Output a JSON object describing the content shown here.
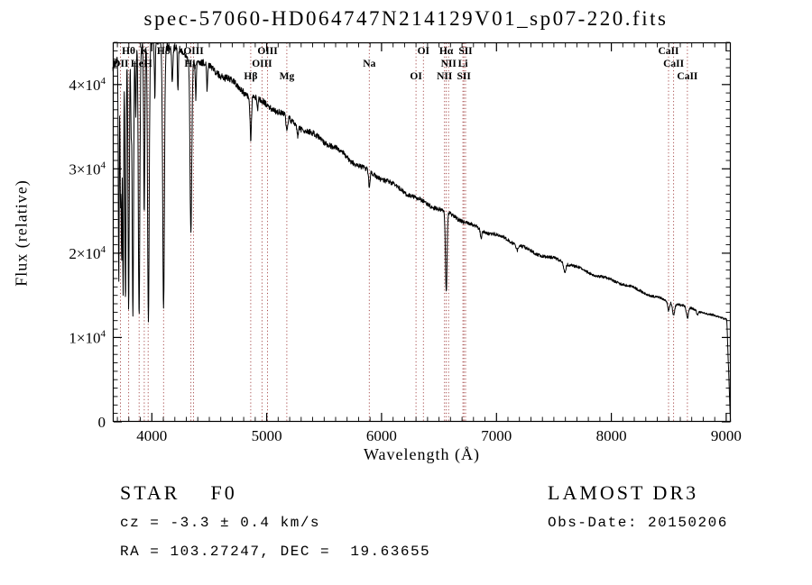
{
  "chart_data": {
    "type": "line",
    "title": "spec-57060-HD064747N214129V01_sp07-220.fits",
    "xlabel": "Wavelength (Å)",
    "ylabel": "Flux (relative)",
    "xlim": [
      3660,
      9040
    ],
    "ylim": [
      0,
      45000
    ],
    "x_ticks": [
      {
        "v": 4000,
        "label": "4000"
      },
      {
        "v": 5000,
        "label": "5000"
      },
      {
        "v": 6000,
        "label": "6000"
      },
      {
        "v": 7000,
        "label": "7000"
      },
      {
        "v": 8000,
        "label": "8000"
      },
      {
        "v": 9000,
        "label": "9000"
      }
    ],
    "x_minor_step": 100,
    "y_ticks": [
      {
        "v": 0,
        "base": "0",
        "exp": ""
      },
      {
        "v": 10000,
        "base": "1×10",
        "exp": "4"
      },
      {
        "v": 20000,
        "base": "2×10",
        "exp": "4"
      },
      {
        "v": 30000,
        "base": "3×10",
        "exp": "4"
      },
      {
        "v": 40000,
        "base": "4×10",
        "exp": "4"
      }
    ],
    "y_minor_step": 1000,
    "line_color": "#000000",
    "marker_line_color": "#9e3a3a",
    "grid": false,
    "legend": "none",
    "spectrum": {
      "continuum": [
        [
          3660,
          42200
        ],
        [
          3700,
          43200
        ],
        [
          3760,
          44000
        ],
        [
          3820,
          44500
        ],
        [
          3880,
          44800
        ],
        [
          3950,
          44900
        ],
        [
          4020,
          44900
        ],
        [
          4080,
          44850
        ],
        [
          4150,
          44600
        ],
        [
          4220,
          44200
        ],
        [
          4300,
          43500
        ],
        [
          4400,
          42700
        ],
        [
          4500,
          41900
        ],
        [
          4600,
          41100
        ],
        [
          4700,
          40300
        ],
        [
          4800,
          39400
        ],
        [
          4900,
          38400
        ],
        [
          5000,
          37500
        ],
        [
          5100,
          36700
        ],
        [
          5200,
          35800
        ],
        [
          5300,
          35000
        ],
        [
          5400,
          34100
        ],
        [
          5500,
          33200
        ],
        [
          5600,
          32300
        ],
        [
          5700,
          31400
        ],
        [
          5800,
          30500
        ],
        [
          5900,
          29600
        ],
        [
          6000,
          28800
        ],
        [
          6100,
          28000
        ],
        [
          6200,
          27300
        ],
        [
          6300,
          26600
        ],
        [
          6400,
          25900
        ],
        [
          6500,
          25200
        ],
        [
          6600,
          24500
        ],
        [
          6700,
          23900
        ],
        [
          6800,
          23300
        ],
        [
          6900,
          22700
        ],
        [
          7000,
          22100
        ],
        [
          7100,
          21500
        ],
        [
          7200,
          20900
        ],
        [
          7300,
          20300
        ],
        [
          7400,
          19800
        ],
        [
          7500,
          19300
        ],
        [
          7600,
          18800
        ],
        [
          7700,
          18300
        ],
        [
          7800,
          17800
        ],
        [
          7900,
          17300
        ],
        [
          8000,
          16800
        ],
        [
          8100,
          16300
        ],
        [
          8200,
          15800
        ],
        [
          8300,
          15300
        ],
        [
          8400,
          14800
        ],
        [
          8500,
          14300
        ],
        [
          8600,
          13800
        ],
        [
          8700,
          13400
        ],
        [
          8800,
          13000
        ],
        [
          8900,
          12600
        ],
        [
          9000,
          12200
        ],
        [
          9040,
          12000
        ]
      ],
      "absorption_lines": [
        [
          3712,
          0.62,
          4
        ],
        [
          3727,
          0.4,
          4
        ],
        [
          3737,
          0.55,
          4
        ],
        [
          3750,
          0.66,
          4.5
        ],
        [
          3771,
          0.68,
          5
        ],
        [
          3798,
          0.7,
          5.5
        ],
        [
          3820,
          0.22,
          4
        ],
        [
          3835,
          0.72,
          6
        ],
        [
          3860,
          0.18,
          4
        ],
        [
          3889,
          0.72,
          6.5
        ],
        [
          3934,
          0.45,
          5
        ],
        [
          3970,
          0.74,
          7
        ],
        [
          4026,
          0.15,
          4
        ],
        [
          4102,
          0.7,
          7.5
        ],
        [
          4178,
          0.1,
          5
        ],
        [
          4227,
          0.12,
          4
        ],
        [
          4340,
          0.48,
          7.5
        ],
        [
          4383,
          0.1,
          4
        ],
        [
          4481,
          0.08,
          4
        ],
        [
          4861,
          0.13,
          6
        ],
        [
          4921,
          0.04,
          4
        ],
        [
          5175,
          0.05,
          7
        ],
        [
          5270,
          0.03,
          5
        ],
        [
          5893,
          0.06,
          6
        ],
        [
          6563,
          0.38,
          7
        ],
        [
          6867,
          0.04,
          7
        ],
        [
          7180,
          0.03,
          8
        ],
        [
          7594,
          0.06,
          9
        ],
        [
          8498,
          0.08,
          8
        ],
        [
          8542,
          0.1,
          9
        ],
        [
          8662,
          0.1,
          9
        ],
        [
          8750,
          0.04,
          6
        ]
      ],
      "edge_drop": {
        "start": 9005,
        "end": 9037
      },
      "noise_amplitude": 0.01
    },
    "line_markers": [
      {
        "wl": 3727,
        "label": "OII",
        "row": 2
      },
      {
        "wl": 3798,
        "label": "Hθ",
        "row": 1
      },
      {
        "wl": 3889,
        "label": "HeI",
        "row": 2
      },
      {
        "wl": 3934,
        "label": "K",
        "row": 1
      },
      {
        "wl": 3968,
        "label": "H",
        "row": 2
      },
      {
        "wl": 4102,
        "label": "Hδ",
        "row": 1
      },
      {
        "wl": 4340,
        "label": "Hγ",
        "row": 2
      },
      {
        "wl": 4363,
        "label": "OIII",
        "row": 1
      },
      {
        "wl": 4861,
        "label": "Hβ",
        "row": 3
      },
      {
        "wl": 4959,
        "label": "OIII",
        "row": 2
      },
      {
        "wl": 5007,
        "label": "OIII",
        "row": 1
      },
      {
        "wl": 5175,
        "label": "Mg",
        "row": 3
      },
      {
        "wl": 5893,
        "label": "Na",
        "row": 2
      },
      {
        "wl": 6300,
        "label": "OI",
        "row": 3
      },
      {
        "wl": 6364,
        "label": "OI",
        "row": 1
      },
      {
        "wl": 6548,
        "label": "NII",
        "row": 3
      },
      {
        "wl": 6563,
        "label": "Hα",
        "row": 1
      },
      {
        "wl": 6583,
        "label": "NII",
        "row": 2
      },
      {
        "wl": 6708,
        "label": "Li",
        "row": 2
      },
      {
        "wl": 6717,
        "label": "SII",
        "row": 3
      },
      {
        "wl": 6731,
        "label": "SII",
        "row": 1
      },
      {
        "wl": 8498,
        "label": "CaII",
        "row": 1
      },
      {
        "wl": 8542,
        "label": "CaII",
        "row": 2
      },
      {
        "wl": 8662,
        "label": "CaII",
        "row": 3
      }
    ]
  },
  "footer": {
    "class_label": "STAR    F0",
    "survey": "LAMOST DR3",
    "cz": "cz = -3.3 ± 0.4 km/s",
    "obs_date": "Obs-Date: 20150206",
    "radec": "RA = 103.27247, DEC =  19.63655"
  }
}
